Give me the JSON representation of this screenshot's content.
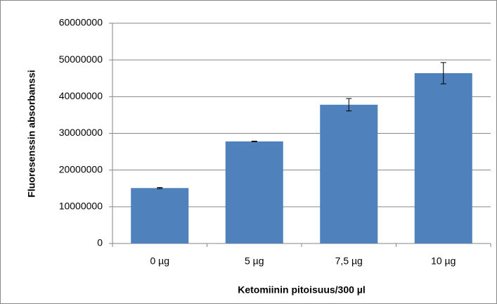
{
  "chart_data": {
    "type": "bar",
    "xlabel": "Ketomiinin pitoisuus/300 µl",
    "ylabel": "Fluoresenssin absorbanssi",
    "categories": [
      "0 µg",
      "5 µg",
      "7,5 µg",
      "10 µg"
    ],
    "values": [
      15100000,
      27800000,
      37800000,
      46400000
    ],
    "errors": [
      150000,
      100000,
      1700000,
      2900000
    ],
    "color": "#4f81bd",
    "ylim": [
      0,
      60000000
    ],
    "yticks": [
      0,
      10000000,
      20000000,
      30000000,
      40000000,
      50000000,
      60000000
    ],
    "grid": true
  }
}
